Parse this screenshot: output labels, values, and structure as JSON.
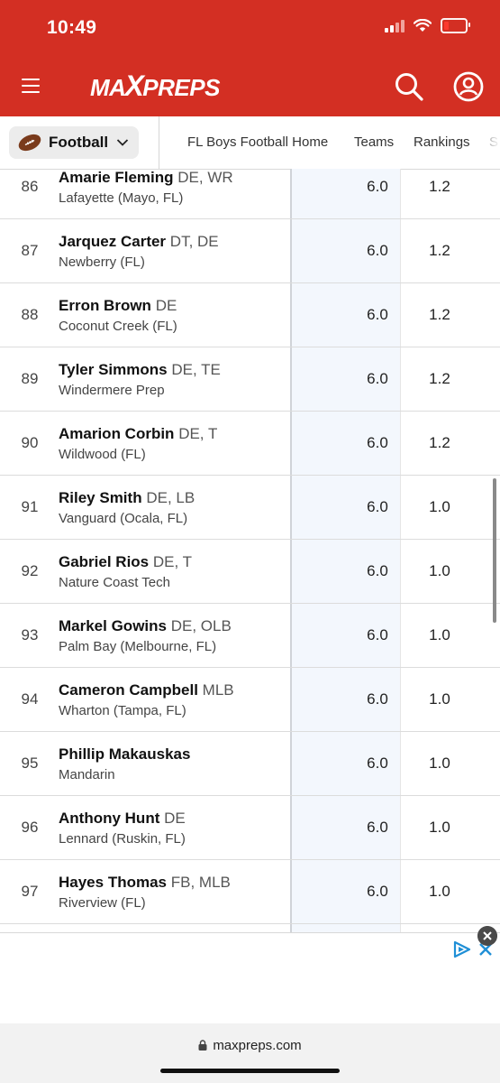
{
  "status_bar": {
    "time": "10:49"
  },
  "header": {
    "logo_left": "MA",
    "logo_x": "X",
    "logo_right": "PREPS"
  },
  "subnav": {
    "sport": "Football",
    "links": [
      "FL Boys Football Home",
      "Teams",
      "Rankings",
      "S"
    ]
  },
  "players": [
    {
      "rank": "86",
      "name": "Amarie Fleming",
      "positions": "DE, WR",
      "school": "Lafayette (Mayo, FL)",
      "rating": "6.0",
      "score": "1.2"
    },
    {
      "rank": "87",
      "name": "Jarquez Carter",
      "positions": "DT, DE",
      "school": "Newberry (FL)",
      "rating": "6.0",
      "score": "1.2"
    },
    {
      "rank": "88",
      "name": "Erron Brown",
      "positions": "DE",
      "school": "Coconut Creek (FL)",
      "rating": "6.0",
      "score": "1.2"
    },
    {
      "rank": "89",
      "name": "Tyler Simmons",
      "positions": "DE, TE",
      "school": "Windermere Prep",
      "rating": "6.0",
      "score": "1.2"
    },
    {
      "rank": "90",
      "name": "Amarion Corbin",
      "positions": "DE, T",
      "school": "Wildwood (FL)",
      "rating": "6.0",
      "score": "1.2"
    },
    {
      "rank": "91",
      "name": "Riley Smith",
      "positions": "DE, LB",
      "school": "Vanguard (Ocala, FL)",
      "rating": "6.0",
      "score": "1.0"
    },
    {
      "rank": "92",
      "name": "Gabriel Rios",
      "positions": "DE, T",
      "school": "Nature Coast Tech",
      "rating": "6.0",
      "score": "1.0"
    },
    {
      "rank": "93",
      "name": "Markel Gowins",
      "positions": "DE, OLB",
      "school": "Palm Bay (Melbourne, FL)",
      "rating": "6.0",
      "score": "1.0"
    },
    {
      "rank": "94",
      "name": "Cameron Campbell",
      "positions": "MLB",
      "school": "Wharton (Tampa, FL)",
      "rating": "6.0",
      "score": "1.0"
    },
    {
      "rank": "95",
      "name": "Phillip Makauskas",
      "positions": "",
      "school": "Mandarin",
      "rating": "6.0",
      "score": "1.0"
    },
    {
      "rank": "96",
      "name": "Anthony Hunt",
      "positions": "DE",
      "school": "Lennard (Ruskin, FL)",
      "rating": "6.0",
      "score": "1.0"
    },
    {
      "rank": "97",
      "name": "Hayes Thomas",
      "positions": "FB, MLB",
      "school": "Riverview (FL)",
      "rating": "6.0",
      "score": "1.0"
    }
  ],
  "url_bar": {
    "url": "maxpreps.com"
  },
  "colors": {
    "brand_red": "#d32f23",
    "highlight_col": "#f3f7fd"
  },
  "icons": [
    "hamburger-icon",
    "search-icon",
    "account-icon",
    "football-icon",
    "chevron-down-icon",
    "lock-icon",
    "adchoices-icon",
    "close-icon"
  ]
}
